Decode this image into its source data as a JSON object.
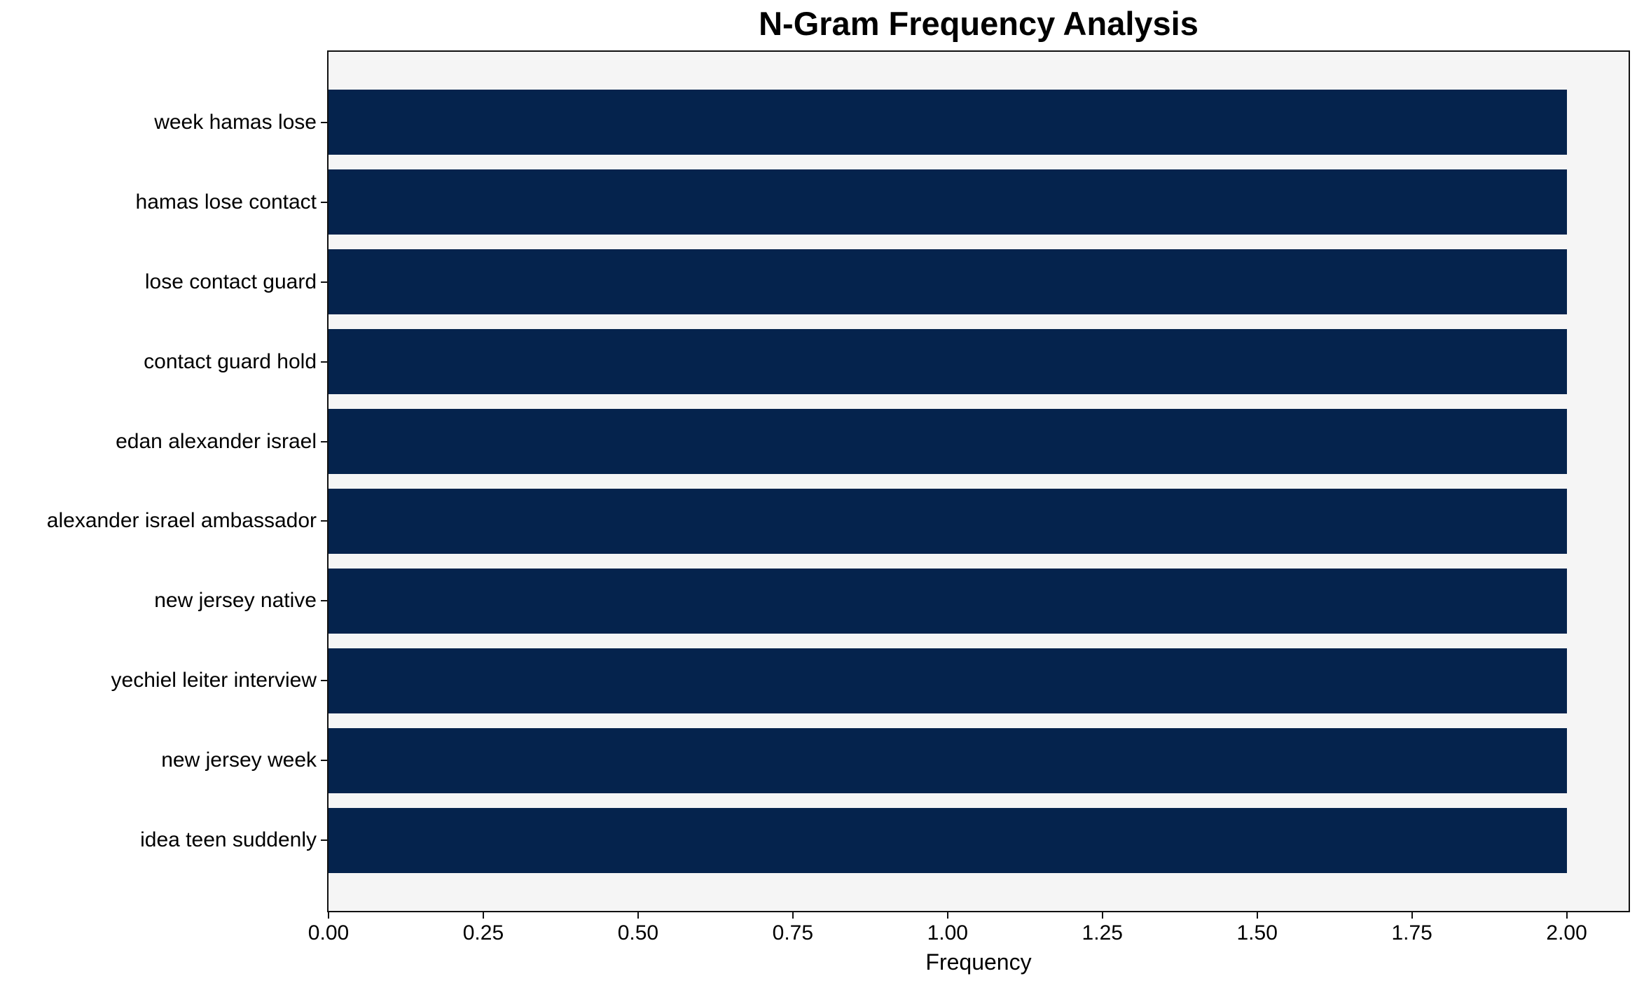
{
  "chart_data": {
    "type": "bar",
    "orientation": "horizontal",
    "title": "N-Gram Frequency Analysis",
    "xlabel": "Frequency",
    "ylabel": "",
    "categories": [
      "week hamas lose",
      "hamas lose contact",
      "lose contact guard",
      "contact guard hold",
      "edan alexander israel",
      "alexander israel ambassador",
      "new jersey native",
      "yechiel leiter interview",
      "new jersey week",
      "idea teen suddenly"
    ],
    "values": [
      2,
      2,
      2,
      2,
      2,
      2,
      2,
      2,
      2,
      2
    ],
    "xticks": [
      "0.00",
      "0.25",
      "0.50",
      "0.75",
      "1.00",
      "1.25",
      "1.50",
      "1.75",
      "2.00"
    ],
    "xlim": [
      0,
      2.1
    ],
    "grid": false,
    "legend_position": "none",
    "bar_color": "#05234d",
    "plot_background": "#f5f5f5",
    "spine_color": "#111111",
    "text_color": "#000000"
  }
}
